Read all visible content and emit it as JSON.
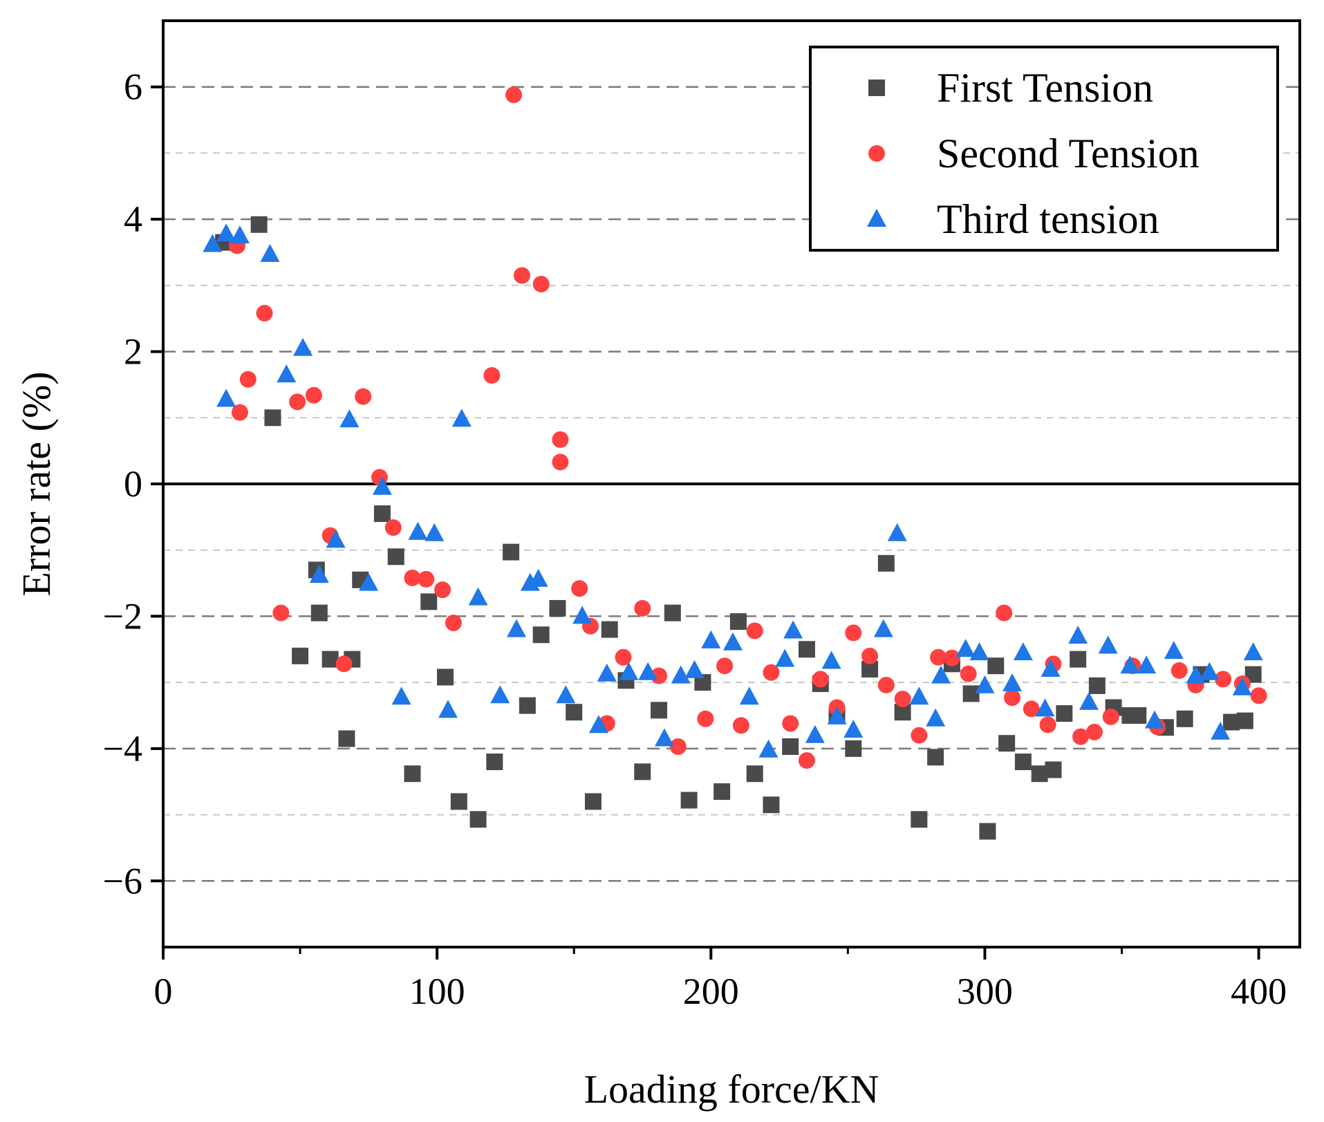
{
  "chart_data": {
    "type": "scatter",
    "title": "",
    "xlabel": "Loading force/KN",
    "ylabel": "Error rate (%)",
    "xlim": [
      0,
      415
    ],
    "ylim": [
      -7,
      7
    ],
    "xticks": [
      0,
      100,
      200,
      300,
      400
    ],
    "yticks": [
      -6,
      -4,
      -2,
      0,
      2,
      4,
      6
    ],
    "xtick_labels": [
      "0",
      "100",
      "200",
      "300",
      "400"
    ],
    "ytick_labels": [
      "−6",
      "−4",
      "−2",
      "0",
      "2",
      "4",
      "6"
    ],
    "grid": true,
    "zero_line": true,
    "legend_position": "top-right",
    "series": [
      {
        "name": "First Tension",
        "marker": "square",
        "color": "#4a4a4a",
        "x": [
          22,
          35,
          40,
          50,
          56,
          57,
          61,
          67,
          69,
          72,
          80,
          85,
          91,
          97,
          103,
          108,
          115,
          121,
          127,
          133,
          138,
          144,
          150,
          157,
          163,
          169,
          175,
          181,
          186,
          192,
          197,
          204,
          210,
          216,
          222,
          229,
          235,
          240,
          246,
          252,
          258,
          264,
          270,
          276,
          282,
          288,
          295,
          301,
          304,
          308,
          314,
          320,
          325,
          329,
          334,
          341,
          347,
          353,
          356,
          366,
          373,
          379,
          390,
          395,
          398
        ],
        "y": [
          3.65,
          3.92,
          1.0,
          -2.6,
          -1.3,
          -1.95,
          -2.65,
          -3.85,
          -2.65,
          -1.45,
          -0.45,
          -1.1,
          -4.38,
          -1.78,
          -2.92,
          -4.8,
          -5.07,
          -4.2,
          -1.03,
          -3.35,
          -2.28,
          -1.88,
          -3.45,
          -4.8,
          -2.2,
          -2.97,
          -4.35,
          -3.42,
          -1.95,
          -4.78,
          -3.0,
          -4.65,
          -2.08,
          -4.38,
          -4.85,
          -3.97,
          -2.5,
          -3.02,
          -3.5,
          -4.0,
          -2.8,
          -1.2,
          -3.45,
          -5.07,
          -4.13,
          -2.72,
          -3.17,
          -5.25,
          -2.75,
          -3.92,
          -4.2,
          -4.38,
          -4.32,
          -3.47,
          -2.65,
          -3.05,
          -3.38,
          -3.5,
          -3.5,
          -3.68,
          -3.55,
          -2.88,
          -3.6,
          -3.58,
          -2.88
        ],
        "legend_label": "First Tension"
      },
      {
        "name": "Second Tension",
        "marker": "circle",
        "color": "#ff4040",
        "x": [
          27,
          28,
          31,
          37,
          43,
          49,
          55,
          61,
          66,
          73,
          79,
          84,
          91,
          96,
          102,
          106,
          120,
          128,
          131,
          138,
          145,
          145,
          152,
          156,
          162,
          168,
          175,
          181,
          188,
          198,
          205,
          211,
          216,
          222,
          229,
          235,
          240,
          246,
          252,
          258,
          264,
          270,
          276,
          283,
          288,
          294,
          307,
          310,
          317,
          323,
          325,
          335,
          340,
          346,
          354,
          363,
          371,
          377,
          387,
          394,
          400
        ],
        "y": [
          3.6,
          1.08,
          1.58,
          2.58,
          -1.95,
          1.24,
          1.34,
          -0.78,
          -2.72,
          1.32,
          0.1,
          -0.66,
          -1.42,
          -1.44,
          -1.6,
          -2.1,
          1.64,
          5.88,
          3.15,
          3.02,
          0.67,
          0.33,
          -1.58,
          -2.15,
          -3.62,
          -2.62,
          -1.88,
          -2.9,
          -3.97,
          -3.55,
          -2.75,
          -3.65,
          -2.22,
          -2.85,
          -3.62,
          -4.18,
          -2.95,
          -3.38,
          -2.25,
          -2.6,
          -3.04,
          -3.25,
          -3.8,
          -2.62,
          -2.63,
          -2.87,
          -1.95,
          -3.23,
          -3.4,
          -3.64,
          -2.72,
          -3.82,
          -3.75,
          -3.52,
          -2.75,
          -3.67,
          -2.82,
          -3.04,
          -2.95,
          -3.02,
          -3.2
        ],
        "legend_label": "Second Tension"
      },
      {
        "name": "Third tension",
        "marker": "triangle",
        "color": "#1f77e8",
        "x": [
          18,
          23,
          23,
          28,
          39,
          45,
          51,
          57,
          63,
          68,
          75,
          80,
          87,
          93,
          99,
          104,
          109,
          115,
          123,
          129,
          134,
          137,
          147,
          153,
          159,
          162,
          170,
          177,
          183,
          189,
          194,
          200,
          208,
          214,
          221,
          227,
          230,
          238,
          244,
          246,
          252,
          263,
          268,
          276,
          282,
          284,
          293,
          298,
          300,
          310,
          314,
          322,
          324,
          334,
          338,
          345,
          353,
          359,
          362,
          369,
          377,
          382,
          386,
          394,
          398
        ],
        "y": [
          3.62,
          3.78,
          1.28,
          3.75,
          3.47,
          1.65,
          2.05,
          -1.38,
          -0.85,
          0.97,
          -1.5,
          -0.05,
          -3.22,
          -0.73,
          -0.75,
          -3.42,
          0.98,
          -1.72,
          -3.2,
          -2.2,
          -1.5,
          -1.44,
          -3.2,
          -2.0,
          -3.65,
          -2.87,
          -2.85,
          -2.85,
          -3.85,
          -2.9,
          -2.82,
          -2.37,
          -2.4,
          -3.22,
          -4.02,
          -2.65,
          -2.22,
          -3.8,
          -2.68,
          -3.52,
          -3.72,
          -2.2,
          -0.75,
          -3.22,
          -3.55,
          -2.9,
          -2.5,
          -2.55,
          -3.05,
          -3.02,
          -2.55,
          -3.4,
          -2.8,
          -2.3,
          -3.3,
          -2.45,
          -2.75,
          -2.75,
          -3.58,
          -2.53,
          -2.9,
          -2.85,
          -3.75,
          -3.08,
          -2.55
        ],
        "legend_label": "Third tension"
      }
    ]
  }
}
